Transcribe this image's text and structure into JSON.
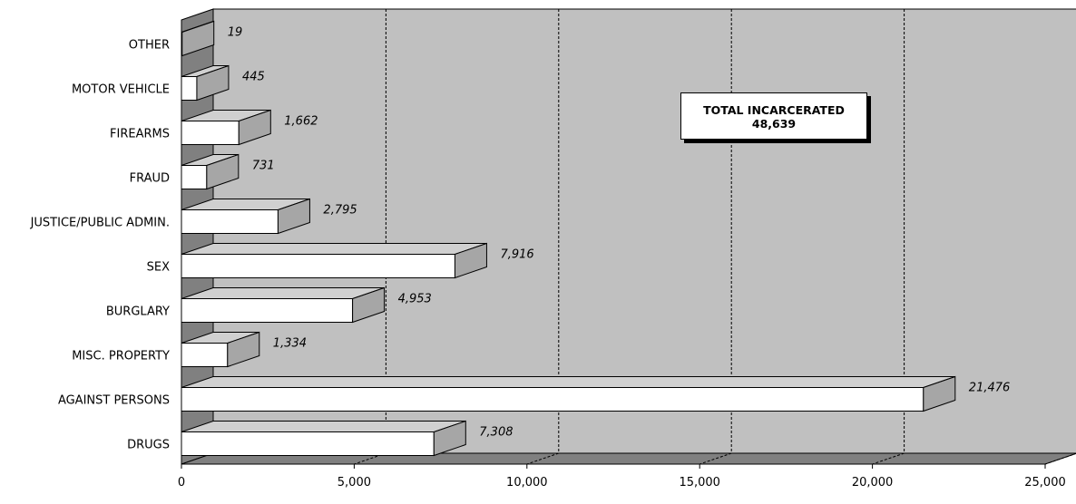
{
  "chart_data": {
    "type": "bar",
    "orientation": "horizontal",
    "style": "3d",
    "categories": [
      "OTHER",
      "MOTOR VEHICLE",
      "FIREARMS",
      "FRAUD",
      "JUSTICE/PUBLIC ADMIN.",
      "SEX",
      "BURGLARY",
      "MISC. PROPERTY",
      "AGAINST PERSONS",
      "DRUGS"
    ],
    "values": [
      19,
      445,
      1662,
      731,
      2795,
      7916,
      4953,
      1334,
      21476,
      7308
    ],
    "value_labels": [
      "19",
      "445",
      "1,662",
      "731",
      "2,795",
      "7,916",
      "4,953",
      "1,334",
      "21,476",
      "7,308"
    ],
    "xticks": [
      0,
      5000,
      10000,
      15000,
      20000,
      25000
    ],
    "xtick_labels": [
      "0",
      "5,000",
      "10,000",
      "15,000",
      "20,000",
      "25,000"
    ],
    "xlim": [
      0,
      25000
    ],
    "grid": "vertical dashed",
    "annotation": {
      "line1": "TOTAL INCARCERATED",
      "line2": "48,639"
    },
    "colors": {
      "bar_front": "#ffffff",
      "bar_side": "#a6a6a6",
      "bar_top": "#d0d0d0",
      "plot_back": "#c0c0c0",
      "plot_floor": "#808080",
      "plot_wall": "#808080"
    }
  }
}
